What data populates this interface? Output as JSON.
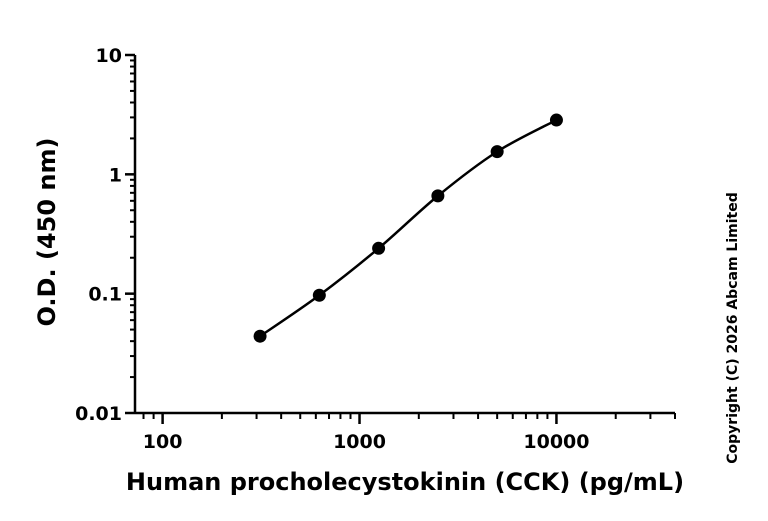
{
  "chart_data": {
    "type": "scatter",
    "x_scale": "log",
    "y_scale": "log",
    "xlabel": "Human procholecystokinin (CCK) (pg/mL)",
    "ylabel": "O.D. (450 nm)",
    "xlim": [
      75,
      40000
    ],
    "ylim": [
      0.01,
      10
    ],
    "grid": false,
    "x_ticks": [
      {
        "value": 100,
        "label": "100"
      },
      {
        "value": 1000,
        "label": "1000"
      },
      {
        "value": 10000,
        "label": "10000"
      }
    ],
    "y_ticks": [
      {
        "value": 0.01,
        "label": "0.01"
      },
      {
        "value": 0.1,
        "label": "0.1"
      },
      {
        "value": 1,
        "label": "1"
      },
      {
        "value": 10,
        "label": "10"
      }
    ],
    "series": [
      {
        "x": [
          312.5,
          625,
          1250,
          2500,
          5000,
          10000
        ],
        "y": [
          0.044,
          0.097,
          0.24,
          0.66,
          1.55,
          2.85
        ],
        "color": "#000000",
        "fit_curve": true
      }
    ],
    "copyright": "Copyright (C) 2026 Abcam Limited"
  }
}
